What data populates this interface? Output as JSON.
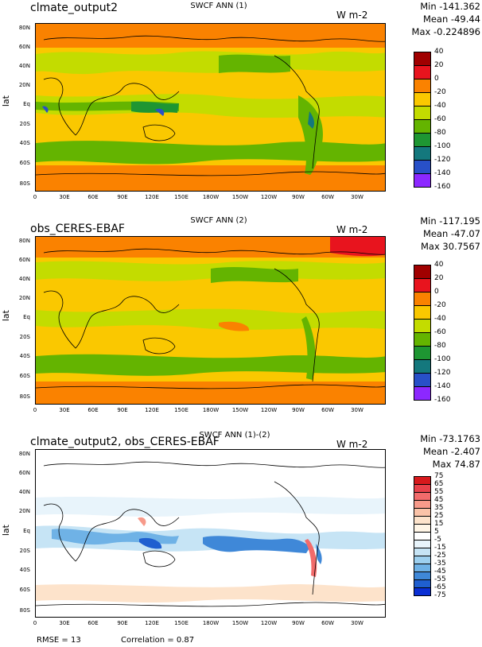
{
  "panels": [
    {
      "title_left": "clmate_output2",
      "title_center": "SWCF ANN (1)",
      "units": "W m-2",
      "stats": {
        "min": "Min -141.362",
        "mean": "Mean -49.44",
        "max": "Max -0.224896"
      },
      "ylabel": "lat",
      "lat_ticks": [
        "80N",
        "60N",
        "40N",
        "20N",
        "Eq",
        "20S",
        "40S",
        "60S",
        "80S"
      ],
      "lon_ticks": [
        "0",
        "30E",
        "60E",
        "90E",
        "120E",
        "150E",
        "180W",
        "150W",
        "120W",
        "90W",
        "60W",
        "30W"
      ],
      "colorbar": {
        "labels": [
          "40",
          "20",
          "0",
          "-20",
          "-40",
          "-60",
          "-80",
          "-100",
          "-120",
          "-140",
          "-160"
        ],
        "colors": [
          "#a00000",
          "#e8141e",
          "#fa8200",
          "#fac800",
          "#c3dc00",
          "#64b400",
          "#1e9632",
          "#14787d",
          "#2850c8",
          "#8c28ff"
        ]
      }
    },
    {
      "title_left": "obs_CERES-EBAF",
      "title_center": "SWCF ANN (2)",
      "units": "W m-2",
      "stats": {
        "min": "Min -117.195",
        "mean": "Mean -47.07",
        "max": "Max 30.7567"
      },
      "ylabel": "lat",
      "lat_ticks": [
        "80N",
        "60N",
        "40N",
        "20N",
        "Eq",
        "20S",
        "40S",
        "60S",
        "80S"
      ],
      "lon_ticks": [
        "0",
        "30E",
        "60E",
        "90E",
        "120E",
        "150E",
        "180W",
        "150W",
        "120W",
        "90W",
        "60W",
        "30W"
      ],
      "colorbar": {
        "labels": [
          "40",
          "20",
          "0",
          "-20",
          "-40",
          "-60",
          "-80",
          "-100",
          "-120",
          "-140",
          "-160"
        ],
        "colors": [
          "#a00000",
          "#e8141e",
          "#fa8200",
          "#fac800",
          "#c3dc00",
          "#64b400",
          "#1e9632",
          "#14787d",
          "#2850c8",
          "#8c28ff"
        ]
      }
    },
    {
      "title_left": "clmate_output2, obs_CERES-EBAF",
      "title_center": "SWCF ANN (1)-(2)",
      "units": "W m-2",
      "stats": {
        "min": "Min -73.1763",
        "mean": "Mean -2.407",
        "max": "Max 74.87"
      },
      "ylabel": "lat",
      "lat_ticks": [
        "80N",
        "60N",
        "40N",
        "20N",
        "Eq",
        "20S",
        "40S",
        "60S",
        "80S"
      ],
      "lon_ticks": [
        "0",
        "30E",
        "60E",
        "90E",
        "120E",
        "150E",
        "180W",
        "150W",
        "120W",
        "90W",
        "60W",
        "30W"
      ],
      "colorbar": {
        "labels": [
          "75",
          "65",
          "55",
          "45",
          "35",
          "25",
          "15",
          "5",
          "-5",
          "-15",
          "-25",
          "-35",
          "-45",
          "-55",
          "-65",
          "-75"
        ],
        "colors": [
          "#d7191c",
          "#e8414a",
          "#f26b6b",
          "#f79a8a",
          "#fbc3a8",
          "#fde3cb",
          "#fff5e6",
          "#ffffff",
          "#e8f4fb",
          "#c6e4f5",
          "#9dd0ef",
          "#6fb2e6",
          "#3f88d8",
          "#1f5fd0",
          "#0a2fd4"
        ]
      }
    }
  ],
  "footer": {
    "rmse": "RMSE = 13",
    "correlation": "Correlation = 0.87"
  }
}
